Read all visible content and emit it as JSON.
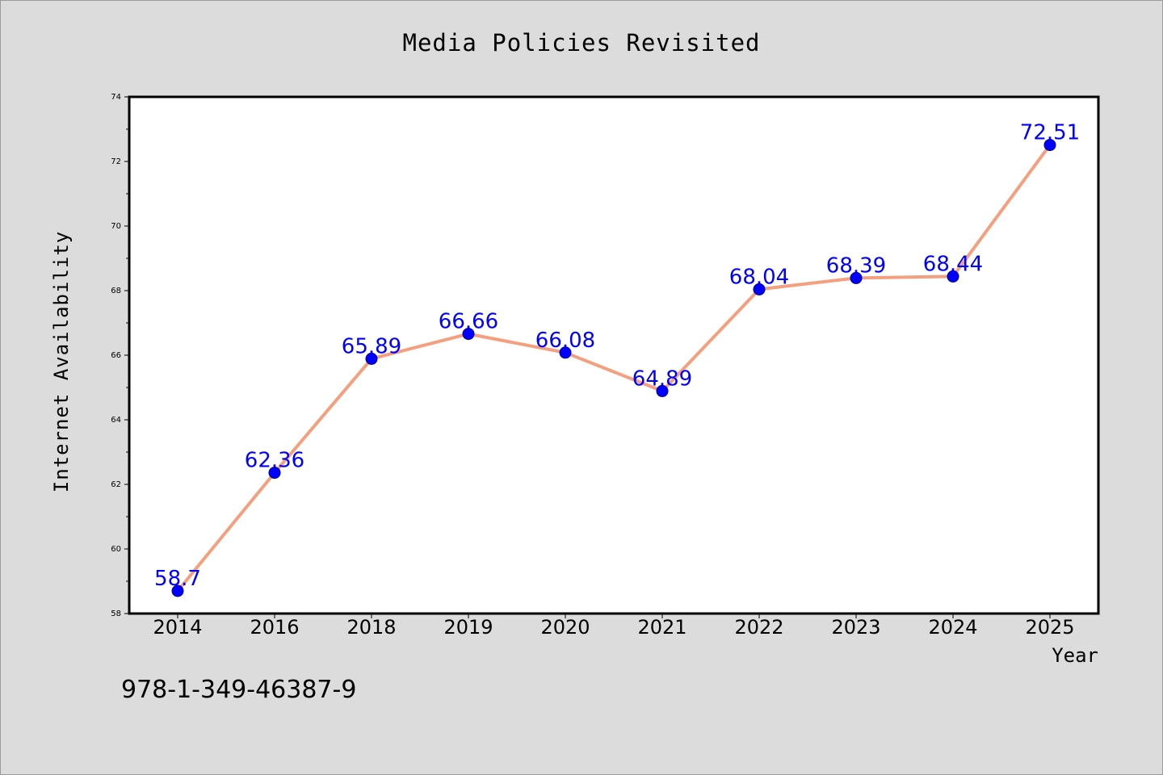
{
  "chart_data": {
    "type": "line",
    "title": "Media Policies Revisited",
    "xlabel": "Year",
    "ylabel": "Internet Availability",
    "categories": [
      "2014",
      "2016",
      "2018",
      "2019",
      "2020",
      "2021",
      "2022",
      "2023",
      "2024",
      "2025"
    ],
    "series": [
      {
        "values": [
          58.7,
          62.36,
          65.89,
          66.66,
          66.08,
          64.89,
          68.04,
          68.39,
          68.44,
          72.51
        ],
        "line_color": "#f4a07e",
        "marker_color": "#0000ff",
        "label_color": "#0000ff"
      }
    ],
    "ylim": [
      58,
      74
    ],
    "yticks": [
      58,
      60,
      62,
      64,
      66,
      68,
      70,
      72,
      74
    ],
    "grid": false,
    "legend": "none"
  },
  "footer": {
    "code": "978-1-349-46387-9"
  },
  "colors": {
    "background": "#dcdcdc",
    "plot_background": "#ffffff",
    "axis": "#000000"
  }
}
